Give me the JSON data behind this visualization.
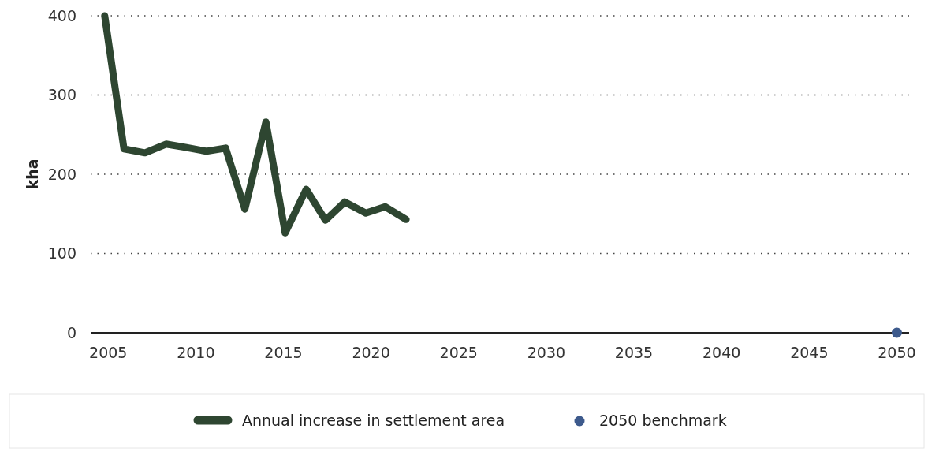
{
  "chart_data": {
    "type": "line",
    "ylabel": "kha",
    "x": [
      2004.8,
      2005.9,
      2007.1,
      2008.3,
      2009.4,
      2010.6,
      2011.7,
      2012.8,
      2014.0,
      2015.1,
      2016.3,
      2017.4,
      2018.5,
      2019.7,
      2020.8,
      2022.0
    ],
    "series": [
      {
        "name": "Annual increase in settlement area",
        "color": "#2e4631",
        "values": [
          400,
          232,
          227,
          238,
          234,
          229,
          233,
          156,
          266,
          126,
          181,
          142,
          165,
          151,
          159,
          143
        ]
      },
      {
        "name": "2050 benchmark",
        "type": "scatter",
        "color": "#3d5a8c",
        "x": [
          2050
        ],
        "values": [
          0
        ],
        "marker": "circle"
      }
    ],
    "xlim": [
      2004,
      2050.7
    ],
    "xticks": [
      2005,
      2010,
      2015,
      2020,
      2025,
      2030,
      2035,
      2040,
      2045,
      2050
    ],
    "ylim": [
      0,
      400
    ],
    "yticks": [
      0,
      100,
      200,
      300,
      400
    ],
    "grid": "y",
    "legend": "bottom"
  }
}
